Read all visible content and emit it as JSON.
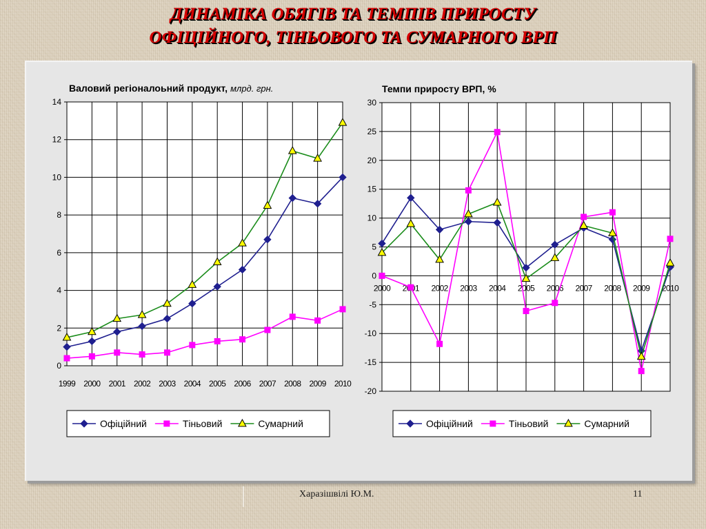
{
  "slide": {
    "title_line1": "ДИНАМІКА  ОБЯГІВ ТА ТЕМПІВ ПРИРОСТУ",
    "title_line2": "ОФІЦІЙНОГО, ТІНЬОВОГО ТА СУМАРНОГО ВРП",
    "author": "Харазішвілі Ю.М.",
    "page_number": "11",
    "title_color": "#d40000"
  },
  "chart_data": [
    {
      "type": "line",
      "title": "Валовий регіоналоьний продукт,",
      "title_unit": "млрд. грн.",
      "categories": [
        "1999",
        "2000",
        "2001",
        "2002",
        "2003",
        "2004",
        "2005",
        "2006",
        "2007",
        "2008",
        "2009",
        "2010"
      ],
      "ylim": [
        0,
        14
      ],
      "yticks": [
        0,
        2,
        4,
        6,
        8,
        10,
        12,
        14
      ],
      "grid": true,
      "legend_position": "bottom",
      "series": [
        {
          "name": "Офіційний",
          "color": "#1f1f8f",
          "marker": "diamond",
          "marker_fill": "#1f1f8f",
          "values": [
            1.0,
            1.3,
            1.8,
            2.1,
            2.5,
            3.3,
            4.2,
            5.1,
            6.7,
            8.9,
            8.6,
            10.0
          ]
        },
        {
          "name": "Тіньовий",
          "color": "#ff00ff",
          "marker": "square",
          "marker_fill": "#ff00ff",
          "values": [
            0.4,
            0.5,
            0.7,
            0.6,
            0.7,
            1.1,
            1.3,
            1.4,
            1.9,
            2.6,
            2.4,
            3.0
          ]
        },
        {
          "name": "Сумарний",
          "color": "#1a8c1a",
          "marker": "triangle",
          "marker_fill": "#ffff00",
          "values": [
            1.5,
            1.8,
            2.5,
            2.7,
            3.3,
            4.3,
            5.5,
            6.5,
            8.5,
            11.4,
            11.0,
            12.9
          ]
        }
      ]
    },
    {
      "type": "line",
      "title": "Темпи приросту ВРП, %",
      "categories": [
        "2000",
        "2001",
        "2002",
        "2003",
        "2004",
        "2005",
        "2006",
        "2007",
        "2008",
        "2009",
        "2010"
      ],
      "ylim": [
        -20,
        30
      ],
      "yticks": [
        -20,
        -15,
        -10,
        -5,
        0,
        5,
        10,
        15,
        20,
        25,
        30
      ],
      "grid": true,
      "legend_position": "bottom",
      "series": [
        {
          "name": "Офіційний",
          "color": "#1f1f8f",
          "marker": "diamond",
          "marker_fill": "#1f1f8f",
          "values": [
            5.6,
            13.5,
            8.0,
            9.4,
            9.2,
            1.4,
            5.4,
            8.3,
            6.3,
            -13.0,
            1.5
          ]
        },
        {
          "name": "Тіньовий",
          "color": "#ff00ff",
          "marker": "square",
          "marker_fill": "#ff00ff",
          "values": [
            0.0,
            -2.0,
            -11.8,
            14.8,
            24.9,
            -6.1,
            -4.7,
            10.2,
            11.0,
            -16.5,
            6.4
          ]
        },
        {
          "name": "Сумарний",
          "color": "#1a8c1a",
          "marker": "triangle",
          "marker_fill": "#ffff00",
          "values": [
            4.0,
            9.0,
            2.8,
            10.7,
            12.7,
            -0.5,
            3.1,
            8.7,
            7.4,
            -14.0,
            2.2
          ]
        }
      ]
    }
  ]
}
